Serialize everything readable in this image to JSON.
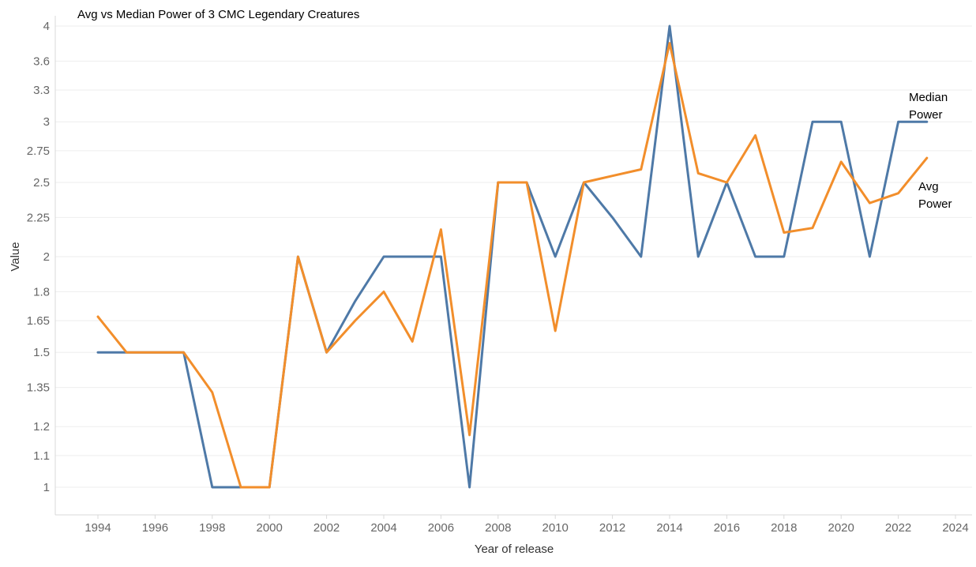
{
  "chart_data": {
    "type": "line",
    "title": "Avg vs Median Power of 3 CMC Legendary Creatures",
    "xlabel": "Year of release",
    "ylabel": "Value",
    "y_scale": "log",
    "x_ticks": [
      "1994",
      "1996",
      "1998",
      "2000",
      "2002",
      "2004",
      "2006",
      "2008",
      "2010",
      "2012",
      "2014",
      "2016",
      "2018",
      "2020",
      "2022",
      "2024"
    ],
    "y_ticks": [
      "1",
      "1.1",
      "1.2",
      "1.35",
      "1.5",
      "1.65",
      "1.8",
      "2",
      "2.25",
      "2.5",
      "2.75",
      "3",
      "3.3",
      "3.6",
      "4"
    ],
    "xlim": [
      1993,
      2025
    ],
    "ylim": [
      0.95,
      4.05
    ],
    "grid": true,
    "series": [
      {
        "name": "Median Power",
        "label_lines": [
          "Median",
          "Power"
        ],
        "color": "#4e79a7",
        "x": [
          1994,
          1995,
          1996,
          1997,
          1998,
          1999,
          2000,
          2001,
          2002,
          2003,
          2004,
          2005,
          2006,
          2007,
          2008,
          2009,
          2010,
          2011,
          2012,
          2013,
          2014,
          2015,
          2016,
          2017,
          2018,
          2019,
          2020,
          2021,
          2022,
          2023
        ],
        "values": [
          1.5,
          1.5,
          1.5,
          1.5,
          1,
          1,
          1,
          2,
          1.5,
          1.75,
          2,
          2,
          2,
          1,
          2.5,
          2.5,
          2,
          2.5,
          2.25,
          2,
          4,
          2,
          2.5,
          2,
          2,
          3,
          3,
          2,
          3,
          3
        ]
      },
      {
        "name": "Avg Power",
        "label_lines": [
          "Avg",
          "Power"
        ],
        "color": "#f28e2b",
        "x": [
          1994,
          1995,
          1996,
          1997,
          1998,
          1999,
          2000,
          2001,
          2002,
          2003,
          2004,
          2005,
          2006,
          2007,
          2008,
          2009,
          2010,
          2011,
          2012,
          2013,
          2014,
          2015,
          2016,
          2017,
          2018,
          2019,
          2020,
          2021,
          2022,
          2023
        ],
        "values": [
          1.67,
          1.5,
          1.5,
          1.5,
          1.33,
          1,
          1,
          2,
          1.5,
          1.65,
          1.8,
          1.55,
          2.17,
          1.17,
          2.5,
          2.5,
          1.6,
          2.5,
          2.55,
          2.6,
          3.8,
          2.57,
          2.5,
          2.88,
          2.15,
          2.18,
          2.66,
          2.35,
          2.42,
          2.69
        ]
      }
    ]
  }
}
